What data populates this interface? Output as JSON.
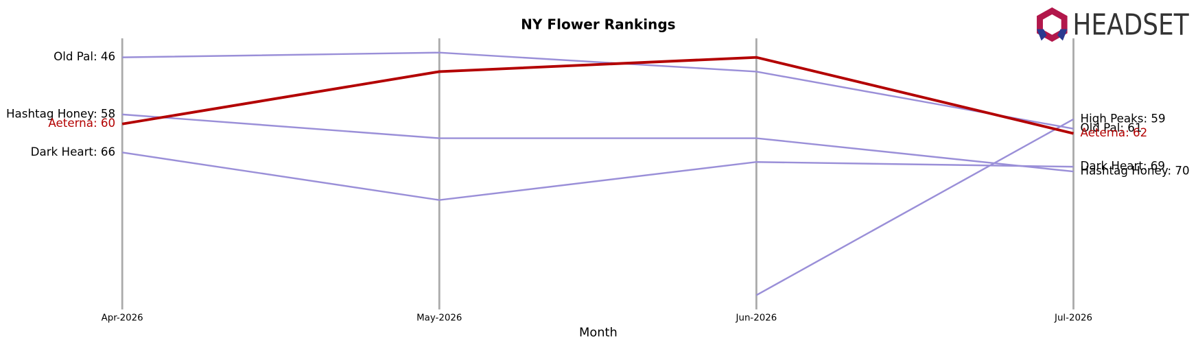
{
  "logo_text": "HEADSET",
  "chart_data": {
    "type": "bump",
    "title": "NY Flower Rankings",
    "x_label": "Month",
    "categories": [
      "Apr-2026",
      "May-2026",
      "Jun-2026",
      "Jul-2026"
    ],
    "ylim": [
      42,
      99
    ],
    "y_inverted": true,
    "series": [
      {
        "name": "Old Pal",
        "color": "#9a8fd8",
        "values": [
          46,
          45,
          49,
          61
        ],
        "value_labels": [
          "Old Pal: 46",
          null,
          null,
          "Old Pal: 61"
        ]
      },
      {
        "name": "Hashtag Honey",
        "color": "#9a8fd8",
        "values": [
          58,
          63,
          63,
          70
        ],
        "value_labels": [
          "Hashtag Honey: 58",
          null,
          null,
          "Hashtag Honey: 70"
        ]
      },
      {
        "name": "Dark Heart",
        "color": "#9a8fd8",
        "values": [
          66,
          76,
          68,
          69
        ],
        "value_labels": [
          "Dark Heart: 66",
          null,
          null,
          "Dark Heart: 69"
        ]
      },
      {
        "name": "High Peaks",
        "color": "#9a8fd8",
        "values": [
          null,
          null,
          96,
          59
        ],
        "value_labels": [
          null,
          null,
          null,
          "High Peaks: 59"
        ]
      },
      {
        "name": "Aeterna",
        "color": "#b30000",
        "values": [
          60,
          49,
          46,
          62
        ],
        "value_labels": [
          "Aeterna: 60",
          null,
          null,
          "Aeterna: 62"
        ],
        "highlight": true
      }
    ]
  }
}
